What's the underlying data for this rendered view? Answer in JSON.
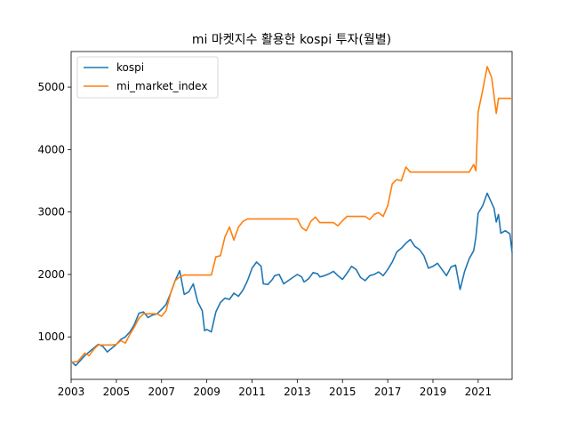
{
  "chart_data": {
    "type": "line",
    "title": "mi 마켓지수 활용한 kospi 투자(월별)",
    "xlabel": "",
    "ylabel": "",
    "xlim": [
      2003.0,
      2022.5
    ],
    "ylim": [
      320,
      5570
    ],
    "xticks": [
      2003,
      2005,
      2007,
      2009,
      2011,
      2013,
      2015,
      2017,
      2019,
      2021
    ],
    "yticks": [
      1000,
      2000,
      3000,
      4000,
      5000
    ],
    "legend": "top-left",
    "grid": false,
    "series": [
      {
        "name": "kospi",
        "color": "#1f77b4",
        "points": [
          [
            2003.0,
            610
          ],
          [
            2003.2,
            540
          ],
          [
            2003.4,
            620
          ],
          [
            2003.6,
            700
          ],
          [
            2003.8,
            760
          ],
          [
            2004.0,
            820
          ],
          [
            2004.2,
            880
          ],
          [
            2004.4,
            850
          ],
          [
            2004.6,
            760
          ],
          [
            2004.8,
            820
          ],
          [
            2005.0,
            880
          ],
          [
            2005.2,
            960
          ],
          [
            2005.4,
            1000
          ],
          [
            2005.6,
            1080
          ],
          [
            2005.8,
            1200
          ],
          [
            2006.0,
            1380
          ],
          [
            2006.2,
            1400
          ],
          [
            2006.4,
            1310
          ],
          [
            2006.6,
            1350
          ],
          [
            2006.8,
            1370
          ],
          [
            2007.0,
            1440
          ],
          [
            2007.2,
            1520
          ],
          [
            2007.4,
            1700
          ],
          [
            2007.6,
            1900
          ],
          [
            2007.8,
            2060
          ],
          [
            2008.0,
            1680
          ],
          [
            2008.2,
            1720
          ],
          [
            2008.4,
            1850
          ],
          [
            2008.6,
            1560
          ],
          [
            2008.8,
            1420
          ],
          [
            2008.9,
            1100
          ],
          [
            2009.0,
            1120
          ],
          [
            2009.2,
            1080
          ],
          [
            2009.4,
            1400
          ],
          [
            2009.6,
            1550
          ],
          [
            2009.8,
            1620
          ],
          [
            2010.0,
            1600
          ],
          [
            2010.2,
            1700
          ],
          [
            2010.4,
            1650
          ],
          [
            2010.6,
            1750
          ],
          [
            2010.8,
            1900
          ],
          [
            2011.0,
            2100
          ],
          [
            2011.2,
            2200
          ],
          [
            2011.4,
            2130
          ],
          [
            2011.5,
            1850
          ],
          [
            2011.7,
            1840
          ],
          [
            2011.9,
            1920
          ],
          [
            2012.0,
            1980
          ],
          [
            2012.2,
            2000
          ],
          [
            2012.4,
            1850
          ],
          [
            2012.6,
            1900
          ],
          [
            2012.8,
            1950
          ],
          [
            2013.0,
            2000
          ],
          [
            2013.2,
            1960
          ],
          [
            2013.3,
            1880
          ],
          [
            2013.5,
            1930
          ],
          [
            2013.7,
            2030
          ],
          [
            2013.9,
            2010
          ],
          [
            2014.0,
            1960
          ],
          [
            2014.2,
            1980
          ],
          [
            2014.4,
            2010
          ],
          [
            2014.6,
            2050
          ],
          [
            2014.8,
            1980
          ],
          [
            2015.0,
            1920
          ],
          [
            2015.2,
            2020
          ],
          [
            2015.4,
            2130
          ],
          [
            2015.6,
            2080
          ],
          [
            2015.8,
            1950
          ],
          [
            2016.0,
            1900
          ],
          [
            2016.2,
            1980
          ],
          [
            2016.4,
            2000
          ],
          [
            2016.6,
            2040
          ],
          [
            2016.8,
            1980
          ],
          [
            2017.0,
            2080
          ],
          [
            2017.2,
            2200
          ],
          [
            2017.4,
            2360
          ],
          [
            2017.6,
            2420
          ],
          [
            2017.8,
            2500
          ],
          [
            2018.0,
            2560
          ],
          [
            2018.2,
            2450
          ],
          [
            2018.4,
            2400
          ],
          [
            2018.6,
            2300
          ],
          [
            2018.8,
            2100
          ],
          [
            2019.0,
            2130
          ],
          [
            2019.2,
            2180
          ],
          [
            2019.4,
            2080
          ],
          [
            2019.6,
            1980
          ],
          [
            2019.8,
            2120
          ],
          [
            2020.0,
            2150
          ],
          [
            2020.2,
            1760
          ],
          [
            2020.4,
            2050
          ],
          [
            2020.6,
            2250
          ],
          [
            2020.8,
            2380
          ],
          [
            2020.9,
            2600
          ],
          [
            2021.0,
            2980
          ],
          [
            2021.2,
            3100
          ],
          [
            2021.4,
            3300
          ],
          [
            2021.5,
            3220
          ],
          [
            2021.7,
            3060
          ],
          [
            2021.8,
            2840
          ],
          [
            2021.9,
            2960
          ],
          [
            2022.0,
            2660
          ],
          [
            2022.2,
            2700
          ],
          [
            2022.4,
            2650
          ],
          [
            2022.5,
            2350
          ]
        ]
      },
      {
        "name": "mi_market_index",
        "color": "#ff7f0e",
        "points": [
          [
            2003.0,
            590
          ],
          [
            2003.3,
            610
          ],
          [
            2003.6,
            740
          ],
          [
            2003.8,
            700
          ],
          [
            2004.0,
            800
          ],
          [
            2004.2,
            870
          ],
          [
            2004.6,
            870
          ],
          [
            2004.8,
            870
          ],
          [
            2005.0,
            880
          ],
          [
            2005.2,
            940
          ],
          [
            2005.4,
            900
          ],
          [
            2005.6,
            1040
          ],
          [
            2005.8,
            1160
          ],
          [
            2006.0,
            1300
          ],
          [
            2006.2,
            1370
          ],
          [
            2006.6,
            1370
          ],
          [
            2006.8,
            1370
          ],
          [
            2007.0,
            1330
          ],
          [
            2007.2,
            1420
          ],
          [
            2007.4,
            1700
          ],
          [
            2007.6,
            1900
          ],
          [
            2007.8,
            1960
          ],
          [
            2008.0,
            1990
          ],
          [
            2008.6,
            1990
          ],
          [
            2008.9,
            1990
          ],
          [
            2009.2,
            1990
          ],
          [
            2009.4,
            2280
          ],
          [
            2009.6,
            2300
          ],
          [
            2009.8,
            2600
          ],
          [
            2010.0,
            2760
          ],
          [
            2010.2,
            2550
          ],
          [
            2010.4,
            2760
          ],
          [
            2010.6,
            2850
          ],
          [
            2010.8,
            2890
          ],
          [
            2011.0,
            2890
          ],
          [
            2012.0,
            2890
          ],
          [
            2012.6,
            2890
          ],
          [
            2013.0,
            2890
          ],
          [
            2013.2,
            2750
          ],
          [
            2013.4,
            2700
          ],
          [
            2013.6,
            2850
          ],
          [
            2013.8,
            2920
          ],
          [
            2014.0,
            2830
          ],
          [
            2014.2,
            2830
          ],
          [
            2014.6,
            2830
          ],
          [
            2014.8,
            2780
          ],
          [
            2015.0,
            2860
          ],
          [
            2015.2,
            2930
          ],
          [
            2015.6,
            2930
          ],
          [
            2016.0,
            2930
          ],
          [
            2016.2,
            2880
          ],
          [
            2016.4,
            2960
          ],
          [
            2016.6,
            2990
          ],
          [
            2016.8,
            2930
          ],
          [
            2017.0,
            3100
          ],
          [
            2017.2,
            3450
          ],
          [
            2017.4,
            3520
          ],
          [
            2017.6,
            3500
          ],
          [
            2017.8,
            3720
          ],
          [
            2018.0,
            3640
          ],
          [
            2019.0,
            3640
          ],
          [
            2020.0,
            3640
          ],
          [
            2020.6,
            3640
          ],
          [
            2020.8,
            3760
          ],
          [
            2020.9,
            3660
          ],
          [
            2021.0,
            4600
          ],
          [
            2021.2,
            4950
          ],
          [
            2021.4,
            5330
          ],
          [
            2021.6,
            5150
          ],
          [
            2021.8,
            4580
          ],
          [
            2021.9,
            4820
          ],
          [
            2022.2,
            4820
          ],
          [
            2022.5,
            4820
          ]
        ]
      }
    ]
  }
}
